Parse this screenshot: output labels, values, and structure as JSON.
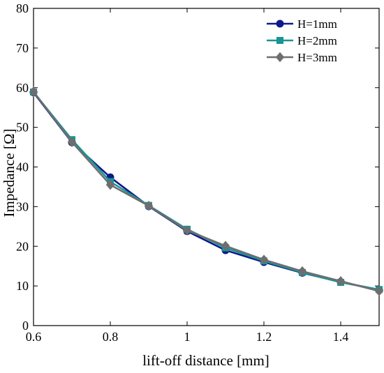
{
  "chart_data": {
    "type": "line",
    "title": "",
    "xlabel": "lift-off distance [mm]",
    "ylabel": "Impedance [Ω]",
    "xlim": [
      0.6,
      1.5
    ],
    "ylim": [
      0,
      80
    ],
    "xticks": [
      0.6,
      0.8,
      1,
      1.2,
      1.4
    ],
    "xtick_labels": [
      "0.6",
      "0.8",
      "1",
      "1.2",
      "1.4"
    ],
    "yticks": [
      0,
      10,
      20,
      30,
      40,
      50,
      60,
      70,
      80
    ],
    "ytick_labels": [
      "0",
      "10",
      "20",
      "30",
      "40",
      "50",
      "60",
      "70",
      "80"
    ],
    "grid": false,
    "legend_position": "top-right",
    "x": [
      0.6,
      0.7,
      0.8,
      0.9,
      1.0,
      1.1,
      1.2,
      1.3,
      1.4,
      1.5
    ],
    "series": [
      {
        "name": "H=1mm",
        "color": "#0c1a8a",
        "marker": "circle",
        "values": [
          58.8,
          46.2,
          37.4,
          30.1,
          23.8,
          19.0,
          16.0,
          13.3,
          11.0,
          9.0
        ]
      },
      {
        "name": "H=2mm",
        "color": "#1a9494",
        "marker": "square",
        "values": [
          58.9,
          46.9,
          36.3,
          30.3,
          24.3,
          19.6,
          16.3,
          13.4,
          10.9,
          9.1
        ]
      },
      {
        "name": "H=3mm",
        "color": "#6e6e6e",
        "marker": "diamond",
        "values": [
          59.0,
          46.3,
          35.5,
          30.2,
          24.0,
          20.1,
          16.6,
          13.7,
          11.2,
          8.7
        ]
      }
    ]
  }
}
